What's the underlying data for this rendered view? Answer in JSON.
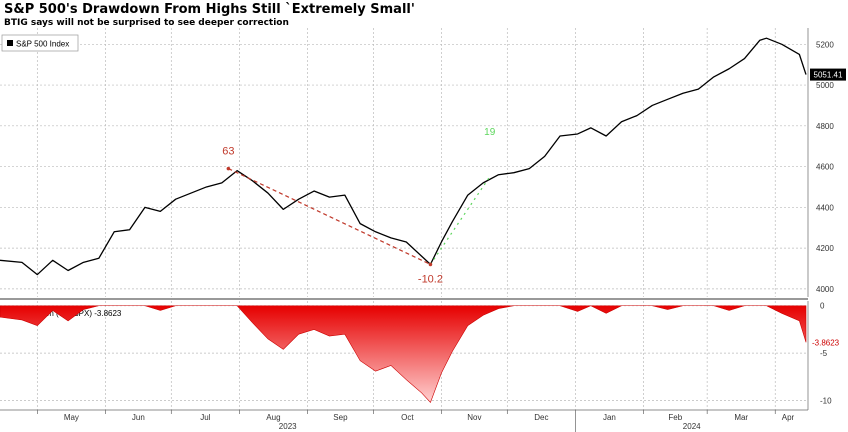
{
  "title": "S&P 500's Drawdown From Highs Still `Extremely Small'",
  "subtitle": "BTIG says will not be surprised to see deeper correction",
  "chart_data": [
    {
      "type": "line",
      "legend": "S&P 500 Index",
      "legend_position": "top-left",
      "last_value_label": "5051.41",
      "ylim": [
        3960,
        5280
      ],
      "yticks": [
        4000,
        4200,
        4400,
        4600,
        4800,
        5000,
        5200
      ],
      "grid": true,
      "x": [
        "2023-04-14",
        "2023-04-24",
        "2023-05-01",
        "2023-05-08",
        "2023-05-15",
        "2023-05-22",
        "2023-05-29",
        "2023-06-05",
        "2023-06-12",
        "2023-06-19",
        "2023-06-26",
        "2023-07-03",
        "2023-07-10",
        "2023-07-17",
        "2023-07-24",
        "2023-07-31",
        "2023-08-07",
        "2023-08-14",
        "2023-08-21",
        "2023-08-28",
        "2023-09-04",
        "2023-09-11",
        "2023-09-18",
        "2023-09-25",
        "2023-10-02",
        "2023-10-09",
        "2023-10-16",
        "2023-10-23",
        "2023-10-27",
        "2023-11-01",
        "2023-11-06",
        "2023-11-13",
        "2023-11-20",
        "2023-11-27",
        "2023-12-04",
        "2023-12-11",
        "2023-12-18",
        "2023-12-25",
        "2024-01-02",
        "2024-01-08",
        "2024-01-15",
        "2024-01-22",
        "2024-01-29",
        "2024-02-05",
        "2024-02-12",
        "2024-02-19",
        "2024-02-26",
        "2024-03-04",
        "2024-03-11",
        "2024-03-18",
        "2024-03-25",
        "2024-03-28",
        "2024-04-04",
        "2024-04-12",
        "2024-04-15"
      ],
      "values": [
        4140,
        4130,
        4070,
        4140,
        4090,
        4130,
        4150,
        4280,
        4290,
        4400,
        4380,
        4440,
        4470,
        4500,
        4520,
        4580,
        4530,
        4470,
        4390,
        4440,
        4480,
        4450,
        4460,
        4320,
        4280,
        4250,
        4230,
        4160,
        4120,
        4230,
        4330,
        4460,
        4520,
        4560,
        4570,
        4590,
        4650,
        4750,
        4760,
        4790,
        4750,
        4820,
        4850,
        4900,
        4930,
        4960,
        4980,
        5040,
        5080,
        5130,
        5220,
        5230,
        5200,
        5150,
        5051.41
      ],
      "annotations": [
        {
          "label": "63",
          "color": "#c0392b",
          "x": "2023-07-27",
          "y": 4590
        },
        {
          "label": "-10.2",
          "color": "#c0392b",
          "x": "2023-10-27",
          "y": 4120
        },
        {
          "label": "19",
          "color": "#5cd65c",
          "x": "2023-11-23",
          "y": 4550
        }
      ]
    },
    {
      "type": "area",
      "legend": "Drawdown (%) (SPX) -3.8623",
      "last_value_label": "-3.8623",
      "ylim": [
        -11,
        0.5
      ],
      "yticks": [
        0,
        -5,
        -10
      ],
      "grid": true,
      "x": [
        "2023-04-14",
        "2023-04-24",
        "2023-05-01",
        "2023-05-08",
        "2023-05-15",
        "2023-05-22",
        "2023-05-29",
        "2023-06-05",
        "2023-06-12",
        "2023-06-19",
        "2023-06-26",
        "2023-07-03",
        "2023-07-10",
        "2023-07-17",
        "2023-07-24",
        "2023-07-31",
        "2023-08-07",
        "2023-08-14",
        "2023-08-21",
        "2023-08-28",
        "2023-09-04",
        "2023-09-11",
        "2023-09-18",
        "2023-09-25",
        "2023-10-02",
        "2023-10-09",
        "2023-10-16",
        "2023-10-23",
        "2023-10-27",
        "2023-11-01",
        "2023-11-06",
        "2023-11-13",
        "2023-11-20",
        "2023-11-27",
        "2023-12-04",
        "2023-12-11",
        "2023-12-18",
        "2023-12-25",
        "2024-01-02",
        "2024-01-08",
        "2024-01-15",
        "2024-01-22",
        "2024-01-29",
        "2024-02-05",
        "2024-02-12",
        "2024-02-19",
        "2024-02-26",
        "2024-03-04",
        "2024-03-11",
        "2024-03-18",
        "2024-03-25",
        "2024-03-28",
        "2024-04-04",
        "2024-04-12",
        "2024-04-15"
      ],
      "values": [
        -1.2,
        -1.5,
        -2.1,
        -0.5,
        -1.6,
        -0.4,
        0,
        0,
        0,
        0,
        -0.5,
        0,
        0,
        0,
        0,
        0,
        -1.8,
        -3.5,
        -4.6,
        -3.0,
        -2.5,
        -3.2,
        -3.0,
        -5.8,
        -6.9,
        -6.3,
        -7.8,
        -9.2,
        -10.2,
        -7.1,
        -4.8,
        -2.1,
        -1.0,
        -0.3,
        0,
        0,
        0,
        0,
        -0.6,
        0,
        -0.8,
        0,
        0,
        0,
        -0.4,
        0,
        0,
        0,
        -0.5,
        0,
        0,
        0,
        -0.8,
        -1.6,
        -3.8623
      ]
    }
  ],
  "x_axis": {
    "months": [
      "May",
      "Jun",
      "Jul",
      "Aug",
      "Sep",
      "Oct",
      "Nov",
      "Dec",
      "Jan",
      "Feb",
      "Mar",
      "Apr"
    ],
    "years": [
      "2023",
      "2024"
    ]
  }
}
